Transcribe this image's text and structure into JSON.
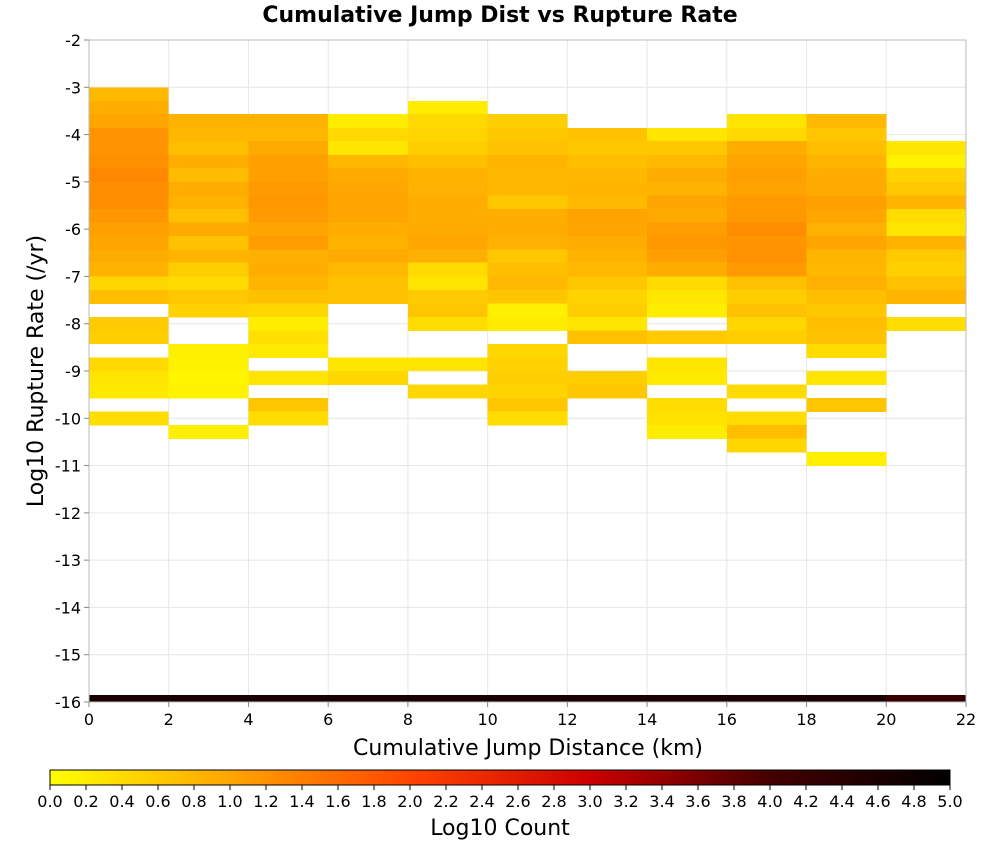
{
  "chart_data": {
    "type": "heatmap",
    "title": "Cumulative Jump Dist vs Rupture Rate",
    "xlabel": "Cumulative Jump Distance (km)",
    "ylabel": "Log10 Rupture Rate (/yr)",
    "xlim": [
      0,
      22
    ],
    "ylim": [
      -16,
      -2
    ],
    "x_ticks": [
      "0",
      "2",
      "4",
      "6",
      "8",
      "10",
      "12",
      "14",
      "16",
      "18",
      "20",
      "22"
    ],
    "y_ticks": [
      "-2",
      "-3",
      "-4",
      "-5",
      "-6",
      "-7",
      "-8",
      "-9",
      "-10",
      "-11",
      "-12",
      "-13",
      "-14",
      "-15",
      "-16"
    ],
    "grid": true,
    "x_bin_edges": [
      0,
      2,
      4,
      6,
      8,
      10,
      12,
      14,
      16,
      18,
      20,
      22
    ],
    "y_bin_size": 0.2857,
    "colorbar": {
      "label": "Log10 Count",
      "range": [
        0,
        5
      ],
      "ticks": [
        "0.0",
        "0.2",
        "0.4",
        "0.6",
        "0.8",
        "1.0",
        "1.2",
        "1.4",
        "1.6",
        "1.8",
        "2.0",
        "2.2",
        "2.4",
        "2.6",
        "2.8",
        "3.0",
        "3.2",
        "3.4",
        "3.6",
        "3.8",
        "4.0",
        "4.2",
        "4.4",
        "4.6",
        "4.8",
        "5.0"
      ],
      "colors": [
        "#ffff00",
        "#ffa500",
        "#ff4500",
        "#cc0000",
        "#440000",
        "#000000"
      ]
    },
    "bottom_row": {
      "y_from": -16.0,
      "y_to": -15.85,
      "values": [
        4.6,
        4.6,
        4.6,
        4.6,
        4.6,
        4.6,
        4.6,
        4.6,
        4.6,
        4.6,
        4.2
      ]
    },
    "columns": [
      {
        "x0": 0,
        "x1": 2,
        "cells": [
          [
            -3.0,
            0.78
          ],
          [
            -3.29,
            0.9
          ],
          [
            -3.57,
            1.0
          ],
          [
            -3.86,
            1.2
          ],
          [
            -4.14,
            1.18
          ],
          [
            -4.43,
            1.22
          ],
          [
            -4.71,
            1.3
          ],
          [
            -5.0,
            1.24
          ],
          [
            -5.29,
            1.25
          ],
          [
            -5.57,
            1.15
          ],
          [
            -5.86,
            1.05
          ],
          [
            -6.14,
            1.0
          ],
          [
            -6.43,
            0.92
          ],
          [
            -6.71,
            0.85
          ],
          [
            -7.0,
            0.45
          ],
          [
            -7.29,
            0.72
          ],
          [
            -7.86,
            0.58
          ],
          [
            -8.14,
            0.55
          ],
          [
            -8.71,
            0.42
          ],
          [
            -9.0,
            0.3
          ],
          [
            -9.29,
            0.25
          ],
          [
            -9.86,
            0.38
          ]
        ]
      },
      {
        "x0": 2,
        "x1": 4,
        "cells": [
          [
            -3.57,
            0.85
          ],
          [
            -3.86,
            0.8
          ],
          [
            -4.14,
            0.72
          ],
          [
            -4.43,
            0.9
          ],
          [
            -4.71,
            0.75
          ],
          [
            -5.0,
            0.92
          ],
          [
            -5.29,
            0.85
          ],
          [
            -5.57,
            0.7
          ],
          [
            -5.86,
            0.95
          ],
          [
            -6.14,
            0.68
          ],
          [
            -6.43,
            0.82
          ],
          [
            -6.71,
            0.55
          ],
          [
            -7.0,
            0.4
          ],
          [
            -7.29,
            0.62
          ],
          [
            -7.57,
            0.5
          ],
          [
            -8.43,
            0.18
          ],
          [
            -8.71,
            0.15
          ],
          [
            -9.0,
            0.1
          ],
          [
            -9.29,
            0.15
          ],
          [
            -10.14,
            0.18
          ]
        ]
      },
      {
        "x0": 4,
        "x1": 6,
        "cells": [
          [
            -3.57,
            0.85
          ],
          [
            -3.86,
            0.8
          ],
          [
            -4.14,
            0.95
          ],
          [
            -4.43,
            1.05
          ],
          [
            -4.71,
            1.05
          ],
          [
            -5.0,
            1.1
          ],
          [
            -5.29,
            1.15
          ],
          [
            -5.57,
            1.1
          ],
          [
            -5.86,
            1.0
          ],
          [
            -6.14,
            1.08
          ],
          [
            -6.43,
            0.88
          ],
          [
            -6.71,
            0.9
          ],
          [
            -7.0,
            0.82
          ],
          [
            -7.29,
            0.7
          ],
          [
            -7.57,
            0.45
          ],
          [
            -7.86,
            0.2
          ],
          [
            -8.14,
            0.35
          ],
          [
            -8.43,
            0.25
          ],
          [
            -9.0,
            0.3
          ],
          [
            -9.57,
            0.65
          ],
          [
            -9.86,
            0.38
          ]
        ]
      },
      {
        "x0": 6,
        "x1": 8,
        "cells": [
          [
            -3.57,
            0.2
          ],
          [
            -3.86,
            0.42
          ],
          [
            -4.14,
            0.28
          ],
          [
            -4.43,
            0.8
          ],
          [
            -4.71,
            0.95
          ],
          [
            -5.0,
            0.98
          ],
          [
            -5.29,
            1.0
          ],
          [
            -5.57,
            1.0
          ],
          [
            -5.86,
            0.9
          ],
          [
            -6.14,
            0.85
          ],
          [
            -6.43,
            0.95
          ],
          [
            -6.71,
            0.78
          ],
          [
            -7.0,
            0.7
          ],
          [
            -7.29,
            0.68
          ],
          [
            -8.71,
            0.28
          ],
          [
            -9.0,
            0.45
          ]
        ]
      },
      {
        "x0": 8,
        "x1": 10,
        "cells": [
          [
            -3.29,
            0.2
          ],
          [
            -3.57,
            0.42
          ],
          [
            -3.86,
            0.48
          ],
          [
            -4.14,
            0.55
          ],
          [
            -4.43,
            0.72
          ],
          [
            -4.71,
            0.85
          ],
          [
            -5.0,
            0.88
          ],
          [
            -5.29,
            0.9
          ],
          [
            -5.57,
            0.92
          ],
          [
            -5.86,
            0.95
          ],
          [
            -6.14,
            0.98
          ],
          [
            -6.43,
            0.88
          ],
          [
            -6.71,
            0.4
          ],
          [
            -7.0,
            0.3
          ],
          [
            -7.29,
            0.58
          ],
          [
            -7.57,
            0.65
          ],
          [
            -7.86,
            0.38
          ],
          [
            -8.71,
            0.3
          ],
          [
            -9.29,
            0.45
          ]
        ]
      },
      {
        "x0": 10,
        "x1": 12,
        "cells": [
          [
            -3.57,
            0.55
          ],
          [
            -3.86,
            0.62
          ],
          [
            -4.14,
            0.68
          ],
          [
            -4.43,
            0.82
          ],
          [
            -4.71,
            0.8
          ],
          [
            -5.0,
            0.8
          ],
          [
            -5.29,
            0.62
          ],
          [
            -5.57,
            0.9
          ],
          [
            -5.86,
            0.92
          ],
          [
            -6.14,
            0.88
          ],
          [
            -6.43,
            0.62
          ],
          [
            -6.71,
            0.72
          ],
          [
            -7.0,
            0.78
          ],
          [
            -7.29,
            0.65
          ],
          [
            -7.57,
            0.18
          ],
          [
            -7.86,
            0.22
          ],
          [
            -8.43,
            0.45
          ],
          [
            -8.71,
            0.5
          ],
          [
            -9.0,
            0.55
          ],
          [
            -9.29,
            0.48
          ],
          [
            -9.57,
            0.62
          ],
          [
            -9.86,
            0.38
          ]
        ]
      },
      {
        "x0": 12,
        "x1": 14,
        "cells": [
          [
            -3.86,
            0.68
          ],
          [
            -4.14,
            0.62
          ],
          [
            -4.43,
            0.72
          ],
          [
            -4.71,
            0.8
          ],
          [
            -5.0,
            0.82
          ],
          [
            -5.29,
            0.78
          ],
          [
            -5.57,
            1.02
          ],
          [
            -5.86,
            1.0
          ],
          [
            -6.14,
            0.92
          ],
          [
            -6.43,
            0.85
          ],
          [
            -6.71,
            0.78
          ],
          [
            -7.0,
            0.62
          ],
          [
            -7.29,
            0.48
          ],
          [
            -7.57,
            0.55
          ],
          [
            -7.86,
            0.28
          ],
          [
            -8.14,
            0.7
          ],
          [
            -9.0,
            0.55
          ],
          [
            -9.29,
            0.62
          ]
        ]
      },
      {
        "x0": 14,
        "x1": 16,
        "cells": [
          [
            -3.86,
            0.28
          ],
          [
            -4.14,
            0.62
          ],
          [
            -4.43,
            0.78
          ],
          [
            -4.71,
            0.92
          ],
          [
            -5.0,
            0.85
          ],
          [
            -5.29,
            1.0
          ],
          [
            -5.57,
            0.95
          ],
          [
            -5.86,
            1.08
          ],
          [
            -6.14,
            1.15
          ],
          [
            -6.43,
            1.05
          ],
          [
            -6.71,
            0.92
          ],
          [
            -7.0,
            0.4
          ],
          [
            -7.29,
            0.28
          ],
          [
            -7.57,
            0.2
          ],
          [
            -8.14,
            0.58
          ],
          [
            -8.71,
            0.3
          ],
          [
            -9.0,
            0.25
          ],
          [
            -9.57,
            0.38
          ],
          [
            -9.86,
            0.32
          ],
          [
            -10.14,
            0.2
          ]
        ]
      },
      {
        "x0": 16,
        "x1": 18,
        "cells": [
          [
            -3.57,
            0.3
          ],
          [
            -3.86,
            0.42
          ],
          [
            -4.14,
            0.92
          ],
          [
            -4.43,
            1.0
          ],
          [
            -4.71,
            1.05
          ],
          [
            -5.0,
            1.02
          ],
          [
            -5.29,
            1.1
          ],
          [
            -5.57,
            1.15
          ],
          [
            -5.86,
            1.25
          ],
          [
            -6.14,
            1.18
          ],
          [
            -6.43,
            1.2
          ],
          [
            -6.71,
            1.1
          ],
          [
            -7.0,
            0.7
          ],
          [
            -7.29,
            0.55
          ],
          [
            -7.57,
            0.68
          ],
          [
            -7.86,
            0.45
          ],
          [
            -8.14,
            0.55
          ],
          [
            -9.29,
            0.4
          ],
          [
            -9.86,
            0.38
          ],
          [
            -10.14,
            0.72
          ],
          [
            -10.43,
            0.45
          ]
        ]
      },
      {
        "x0": 18,
        "x1": 20,
        "cells": [
          [
            -3.57,
            0.78
          ],
          [
            -3.86,
            0.65
          ],
          [
            -4.14,
            0.72
          ],
          [
            -4.43,
            0.82
          ],
          [
            -4.71,
            0.92
          ],
          [
            -5.0,
            0.95
          ],
          [
            -5.29,
            1.05
          ],
          [
            -5.57,
            0.98
          ],
          [
            -5.86,
            0.88
          ],
          [
            -6.14,
            1.0
          ],
          [
            -6.43,
            0.82
          ],
          [
            -6.71,
            0.8
          ],
          [
            -7.0,
            0.88
          ],
          [
            -7.29,
            0.72
          ],
          [
            -7.57,
            0.62
          ],
          [
            -7.86,
            0.72
          ],
          [
            -8.14,
            0.68
          ],
          [
            -8.43,
            0.4
          ],
          [
            -9.0,
            0.3
          ],
          [
            -9.57,
            0.65
          ],
          [
            -10.71,
            0.18
          ]
        ]
      },
      {
        "x0": 20,
        "x1": 22,
        "cells": [
          [
            -4.14,
            0.28
          ],
          [
            -4.43,
            0.15
          ],
          [
            -4.71,
            0.5
          ],
          [
            -5.0,
            0.6
          ],
          [
            -5.29,
            0.82
          ],
          [
            -5.57,
            0.38
          ],
          [
            -5.86,
            0.3
          ],
          [
            -6.14,
            0.85
          ],
          [
            -6.43,
            0.58
          ],
          [
            -6.71,
            0.52
          ],
          [
            -7.0,
            0.7
          ],
          [
            -7.29,
            0.82
          ],
          [
            -7.86,
            0.38
          ]
        ]
      }
    ]
  }
}
